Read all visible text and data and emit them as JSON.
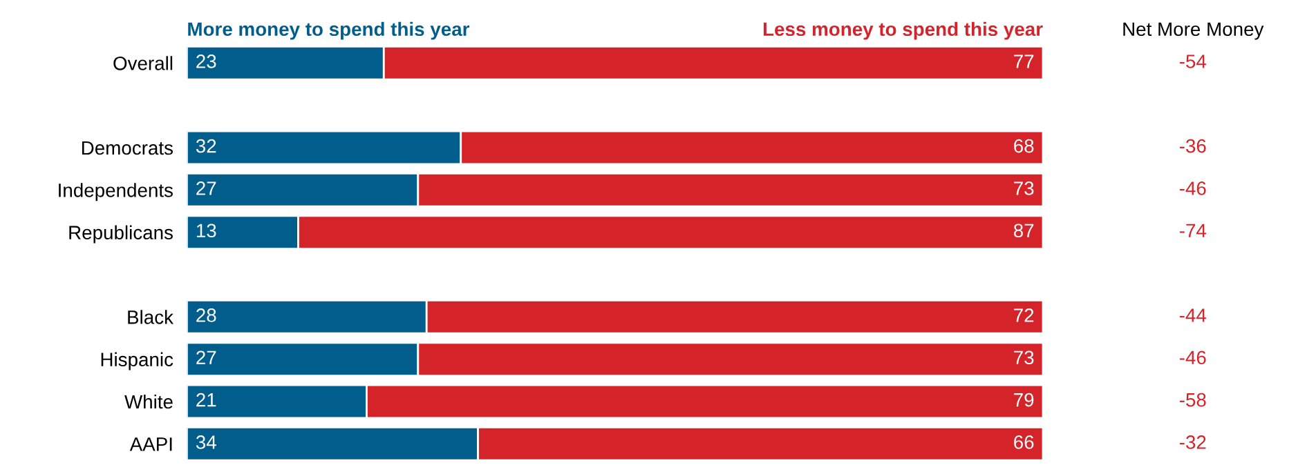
{
  "chart_data": {
    "type": "bar",
    "orientation": "horizontal",
    "stacked": true,
    "data_labels": true,
    "legend": "top",
    "categories": [
      "Overall",
      null,
      "Democrats",
      "Independents",
      "Republicans",
      null,
      "Black",
      "Hispanic",
      "White",
      "AAPI"
    ],
    "series": [
      {
        "name": "More money to spend this year",
        "color": "#005d8c",
        "values": [
          23,
          null,
          32,
          27,
          13,
          null,
          28,
          27,
          21,
          34
        ]
      },
      {
        "name": "Less money to spend this year",
        "color": "#d5232a",
        "values": [
          77,
          null,
          68,
          73,
          87,
          null,
          72,
          73,
          79,
          66
        ]
      }
    ],
    "annotations": [
      "Net More Money",
      "-54",
      "-36",
      "-46",
      "-74",
      "-44",
      "-46",
      "-58",
      "-32"
    ]
  }
}
